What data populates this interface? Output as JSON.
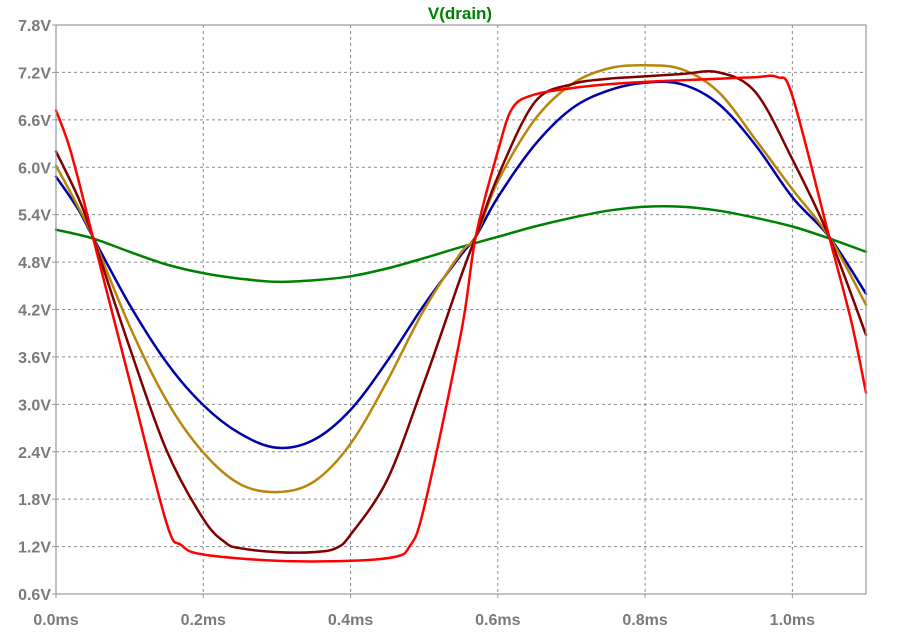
{
  "chart_data": {
    "type": "line",
    "title": "V(drain)",
    "title_color": "#008000",
    "xlabel": "",
    "ylabel": "",
    "xlim": [
      0.0,
      1.1
    ],
    "ylim": [
      0.6,
      7.8
    ],
    "x_ticks": [
      0.0,
      0.2,
      0.4,
      0.6,
      0.8,
      1.0
    ],
    "x_tick_labels": [
      "0.0ms",
      "0.2ms",
      "0.4ms",
      "0.6ms",
      "0.8ms",
      "1.0ms"
    ],
    "y_ticks": [
      0.6,
      1.2,
      1.8,
      2.4,
      3.0,
      3.6,
      4.2,
      4.8,
      5.4,
      6.0,
      6.6,
      7.2,
      7.8
    ],
    "y_tick_labels": [
      "0.6V",
      "1.2V",
      "1.8V",
      "2.4V",
      "3.0V",
      "3.6V",
      "4.2V",
      "4.8V",
      "5.4V",
      "6.0V",
      "6.6V",
      "7.2V",
      "7.8V"
    ],
    "grid": true,
    "legend": "none",
    "series": [
      {
        "color": "#008000",
        "x": [
          0.0,
          0.05,
          0.1,
          0.15,
          0.2,
          0.25,
          0.3,
          0.35,
          0.4,
          0.45,
          0.5,
          0.55,
          0.6,
          0.65,
          0.7,
          0.75,
          0.8,
          0.85,
          0.9,
          0.95,
          1.0,
          1.05,
          1.1
        ],
        "values": [
          5.21,
          5.1,
          4.93,
          4.77,
          4.66,
          4.59,
          4.55,
          4.57,
          4.62,
          4.72,
          4.85,
          4.99,
          5.12,
          5.25,
          5.36,
          5.45,
          5.5,
          5.5,
          5.45,
          5.36,
          5.25,
          5.1,
          4.93
        ]
      },
      {
        "color": "#0000aa",
        "x": [
          0.0,
          0.03,
          0.05,
          0.1,
          0.15,
          0.2,
          0.25,
          0.3,
          0.35,
          0.4,
          0.45,
          0.5,
          0.55,
          0.57,
          0.6,
          0.65,
          0.7,
          0.75,
          0.8,
          0.85,
          0.9,
          0.95,
          1.0,
          1.05,
          1.1
        ],
        "values": [
          5.88,
          5.47,
          5.12,
          4.26,
          3.53,
          2.99,
          2.63,
          2.45,
          2.55,
          2.93,
          3.55,
          4.26,
          4.89,
          5.12,
          5.62,
          6.28,
          6.74,
          6.97,
          7.07,
          7.05,
          6.8,
          6.28,
          5.62,
          5.12,
          4.4
        ]
      },
      {
        "color": "#b8860b",
        "x": [
          0.0,
          0.03,
          0.05,
          0.1,
          0.15,
          0.2,
          0.25,
          0.3,
          0.35,
          0.4,
          0.45,
          0.5,
          0.55,
          0.57,
          0.6,
          0.65,
          0.7,
          0.75,
          0.8,
          0.85,
          0.9,
          0.95,
          1.0,
          1.05,
          1.1
        ],
        "values": [
          6.02,
          5.5,
          5.12,
          3.99,
          3.05,
          2.39,
          1.99,
          1.89,
          2.02,
          2.5,
          3.3,
          4.2,
          4.92,
          5.12,
          5.82,
          6.6,
          7.05,
          7.25,
          7.29,
          7.24,
          6.95,
          6.35,
          5.72,
          5.12,
          4.26
        ]
      },
      {
        "color": "#800000",
        "x": [
          0.0,
          0.03,
          0.05,
          0.1,
          0.15,
          0.2,
          0.23,
          0.25,
          0.3,
          0.35,
          0.38,
          0.4,
          0.45,
          0.5,
          0.55,
          0.57,
          0.6,
          0.65,
          0.7,
          0.75,
          0.8,
          0.85,
          0.9,
          0.95,
          1.0,
          1.05,
          1.1
        ],
        "values": [
          6.2,
          5.62,
          5.12,
          3.72,
          2.42,
          1.55,
          1.25,
          1.18,
          1.13,
          1.13,
          1.18,
          1.35,
          2.05,
          3.28,
          4.62,
          5.12,
          5.88,
          6.82,
          7.05,
          7.12,
          7.15,
          7.18,
          7.2,
          6.95,
          6.1,
          5.12,
          3.88
        ]
      },
      {
        "color": "#ff0000",
        "x": [
          0.0,
          0.02,
          0.05,
          0.1,
          0.15,
          0.17,
          0.2,
          0.3,
          0.4,
          0.46,
          0.48,
          0.5,
          0.55,
          0.57,
          0.6,
          0.62,
          0.65,
          0.7,
          0.75,
          0.8,
          0.85,
          0.9,
          0.95,
          0.98,
          1.0,
          1.05,
          1.08,
          1.1
        ],
        "values": [
          6.72,
          6.2,
          5.12,
          3.3,
          1.5,
          1.22,
          1.1,
          1.02,
          1.02,
          1.07,
          1.2,
          1.7,
          3.9,
          5.12,
          6.2,
          6.75,
          6.92,
          7.0,
          7.05,
          7.08,
          7.1,
          7.12,
          7.14,
          7.14,
          6.9,
          5.12,
          4.05,
          3.15
        ]
      }
    ]
  }
}
